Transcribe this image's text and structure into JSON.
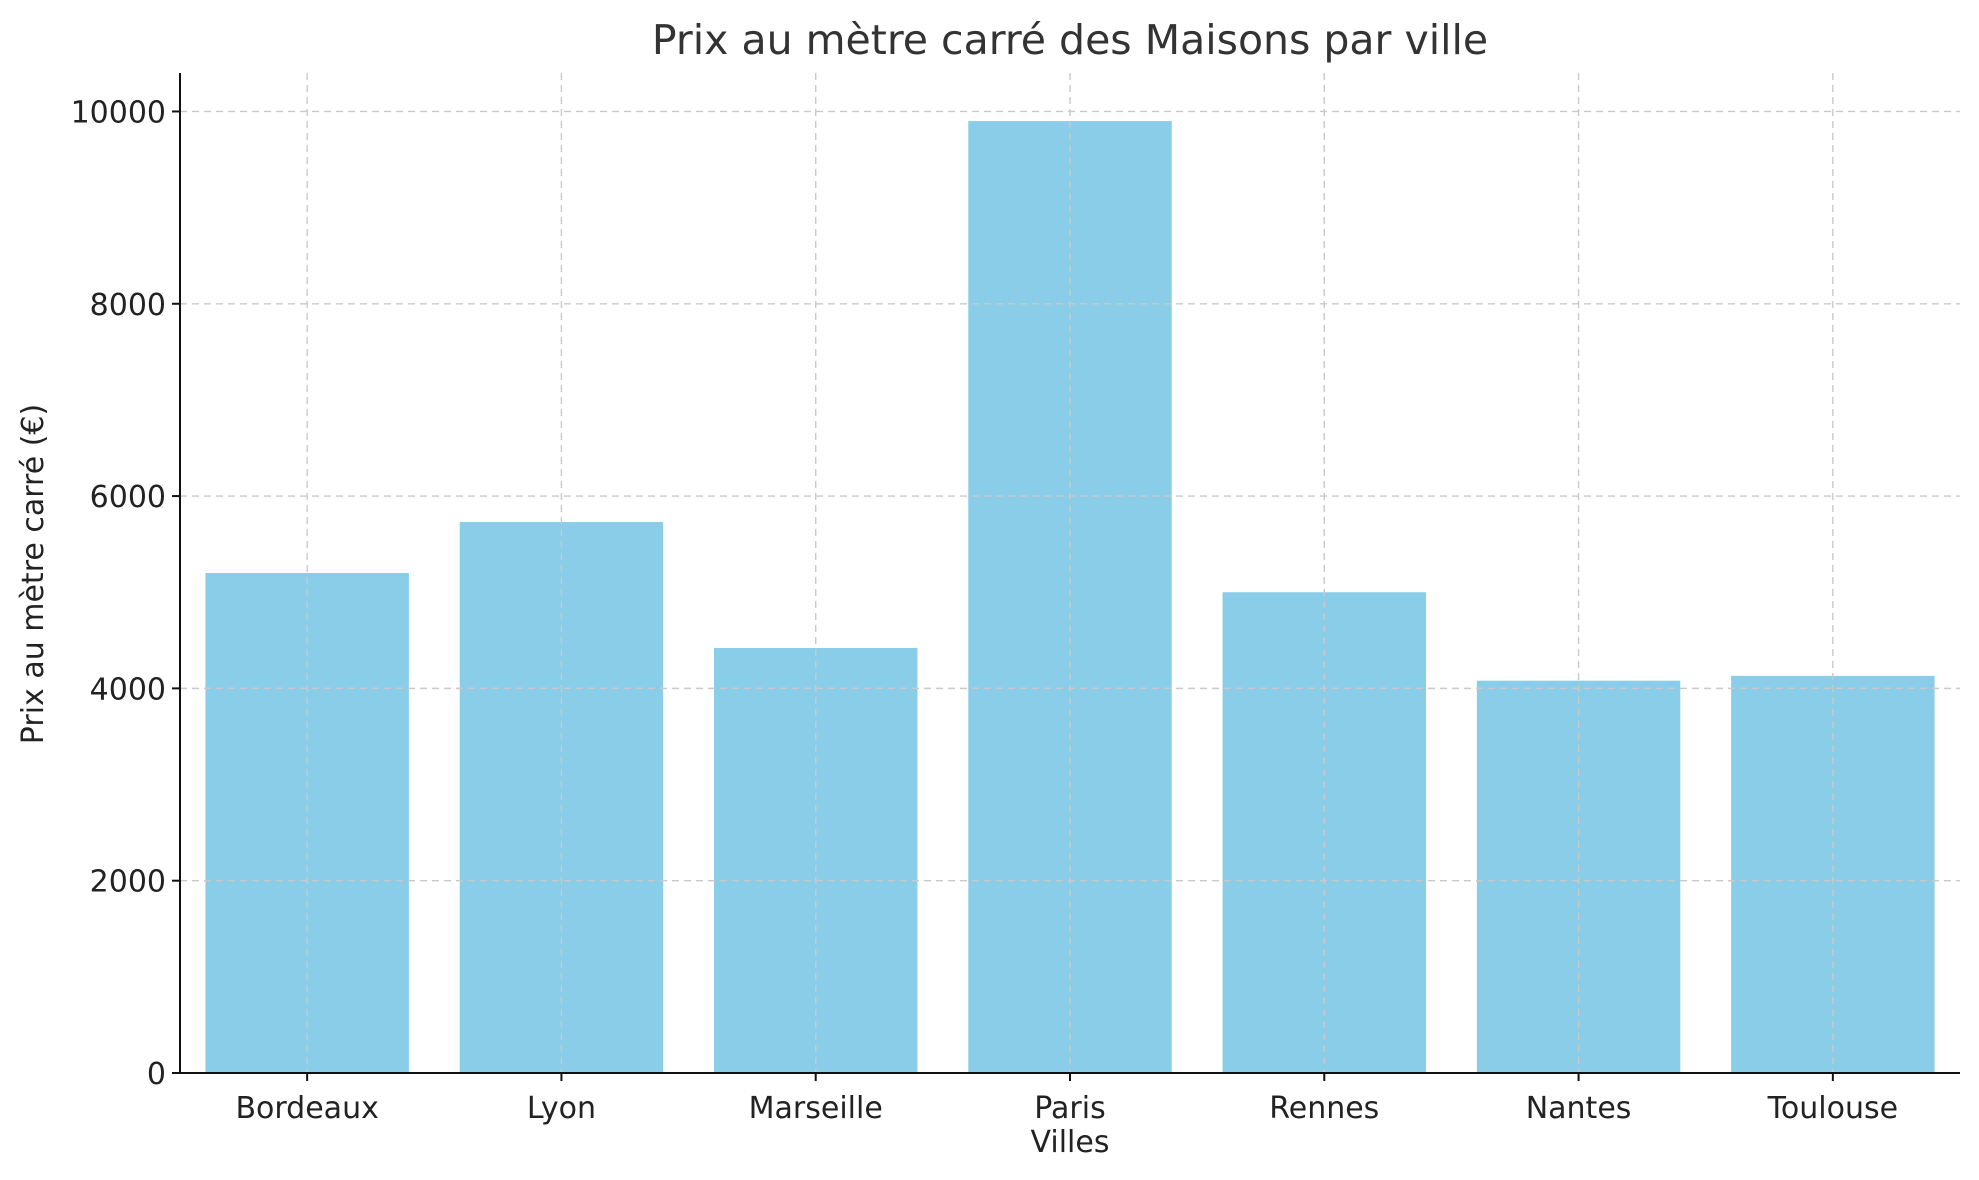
{
  "chart_data": {
    "type": "bar",
    "title": "Prix au mètre carré des Maisons par ville",
    "xlabel": "Villes",
    "ylabel": "Prix au mètre carré (€)",
    "categories": [
      "Bordeaux",
      "Lyon",
      "Marseille",
      "Paris",
      "Rennes",
      "Nantes",
      "Toulouse"
    ],
    "values": [
      5200,
      5730,
      4420,
      9900,
      5000,
      4080,
      4130
    ],
    "ylim": [
      0,
      10400
    ],
    "yticks": [
      0,
      2000,
      4000,
      6000,
      8000,
      10000
    ],
    "grid": true,
    "bar_color": "#89CDE9"
  }
}
